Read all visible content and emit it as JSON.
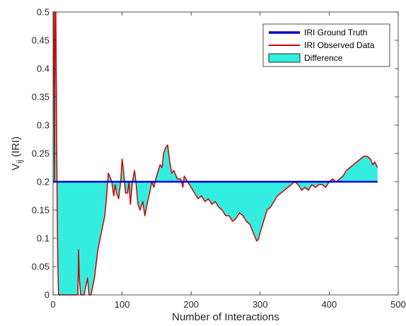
{
  "chart_data": {
    "type": "area",
    "xlabel": "Number of Interactions",
    "ylabel_main": "V",
    "ylabel_sub": "ij",
    "ylabel_rest": " (IRI)",
    "xlim": [
      0,
      500
    ],
    "ylim": [
      0,
      0.5
    ],
    "xticks": [
      0,
      100,
      200,
      300,
      400,
      500
    ],
    "xtick_labels": [
      "0",
      "100",
      "200",
      "300",
      "400",
      "500"
    ],
    "yticks": [
      0,
      0.05,
      0.1,
      0.15,
      0.2,
      0.25,
      0.3,
      0.35,
      0.4,
      0.45,
      0.5
    ],
    "ytick_labels": [
      "0",
      "0.05",
      "0.1",
      "0.15",
      "0.2",
      "0.25",
      "0.3",
      "0.35",
      "0.4",
      "0.45",
      "0.5"
    ],
    "grid": false,
    "legend_position": "top-right",
    "series": [
      {
        "name": "IRI Ground Truth",
        "color": "#0000cc",
        "x": [
          0,
          470
        ],
        "y": [
          0.2,
          0.2
        ]
      },
      {
        "name": "IRI Observed Data",
        "color": "#cc0000",
        "x": [
          0,
          1,
          2,
          3,
          4,
          5,
          6,
          7,
          8,
          10,
          20,
          30,
          36,
          37,
          38,
          40,
          45,
          50,
          52,
          55,
          60,
          65,
          70,
          75,
          78,
          80,
          82,
          85,
          88,
          90,
          92,
          95,
          98,
          100,
          102,
          105,
          108,
          110,
          112,
          115,
          118,
          120,
          123,
          126,
          130,
          133,
          137,
          140,
          143,
          146,
          150,
          155,
          158,
          160,
          163,
          166,
          169,
          172,
          175,
          180,
          185,
          188,
          190,
          195,
          200,
          205,
          210,
          215,
          220,
          225,
          230,
          235,
          240,
          245,
          250,
          255,
          260,
          265,
          270,
          275,
          280,
          285,
          290,
          295,
          298,
          300,
          305,
          310,
          315,
          320,
          325,
          330,
          335,
          340,
          345,
          350,
          355,
          360,
          365,
          370,
          375,
          380,
          385,
          390,
          395,
          400,
          405,
          410,
          415,
          420,
          425,
          430,
          435,
          440,
          445,
          450,
          455,
          460,
          463,
          466,
          470
        ],
        "y": [
          0.5,
          0.5,
          0.2,
          0.5,
          0.5,
          0.33,
          0.15,
          0.05,
          0.0,
          0.0,
          0.0,
          0.0,
          0.0,
          0.08,
          0.03,
          0.0,
          0.0,
          0.03,
          0.0,
          0.0,
          0.03,
          0.08,
          0.11,
          0.14,
          0.18,
          0.215,
          0.21,
          0.2,
          0.175,
          0.195,
          0.18,
          0.17,
          0.2,
          0.24,
          0.22,
          0.18,
          0.18,
          0.2,
          0.16,
          0.2,
          0.22,
          0.2,
          0.16,
          0.15,
          0.165,
          0.14,
          0.165,
          0.18,
          0.2,
          0.19,
          0.21,
          0.23,
          0.225,
          0.25,
          0.26,
          0.265,
          0.235,
          0.215,
          0.22,
          0.205,
          0.205,
          0.19,
          0.21,
          0.2,
          0.19,
          0.18,
          0.17,
          0.175,
          0.165,
          0.17,
          0.16,
          0.165,
          0.155,
          0.15,
          0.14,
          0.14,
          0.13,
          0.135,
          0.145,
          0.14,
          0.13,
          0.125,
          0.11,
          0.095,
          0.1,
          0.11,
          0.13,
          0.15,
          0.155,
          0.165,
          0.175,
          0.18,
          0.185,
          0.19,
          0.195,
          0.2,
          0.195,
          0.185,
          0.19,
          0.185,
          0.195,
          0.19,
          0.195,
          0.195,
          0.19,
          0.2,
          0.205,
          0.2,
          0.205,
          0.21,
          0.22,
          0.225,
          0.23,
          0.235,
          0.24,
          0.245,
          0.245,
          0.24,
          0.23,
          0.235,
          0.225
        ]
      }
    ],
    "fill": {
      "name": "Difference",
      "color": "#33eee0",
      "between": [
        "IRI Ground Truth",
        "IRI Observed Data"
      ]
    },
    "axis_color": "#262626"
  }
}
